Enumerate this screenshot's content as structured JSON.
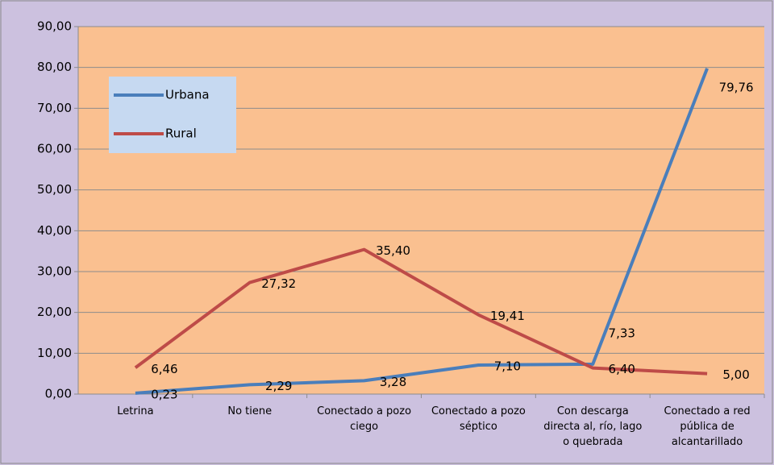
{
  "chart_data": {
    "type": "line",
    "categories": [
      "Letrina",
      "No tiene",
      "Conectado a pozo ciego",
      "Conectado a pozo séptico",
      "Con descarga directa al, río, lago o quebrada",
      "Conectado a red pública de alcantarillado"
    ],
    "series": [
      {
        "name": "Urbana",
        "color": "#4a7ebb",
        "values": [
          0.23,
          2.29,
          3.28,
          7.1,
          7.33,
          79.76
        ],
        "value_labels": [
          "0,23",
          "2,29",
          "3,28",
          "7,10",
          "7,33",
          "79,76"
        ]
      },
      {
        "name": "Rural",
        "color": "#be4b48",
        "values": [
          6.46,
          27.32,
          35.4,
          19.41,
          6.4,
          5.0
        ],
        "value_labels": [
          "6,46",
          "27,32",
          "35,40",
          "19,41",
          "6,40",
          "5,00"
        ]
      }
    ],
    "ylim": [
      0,
      90
    ],
    "yticks": [
      {
        "value": 0,
        "label": "0,00"
      },
      {
        "value": 10,
        "label": "10,00"
      },
      {
        "value": 20,
        "label": "20,00"
      },
      {
        "value": 30,
        "label": "30,00"
      },
      {
        "value": 40,
        "label": "40,00"
      },
      {
        "value": 50,
        "label": "50,00"
      },
      {
        "value": 60,
        "label": "60,00"
      },
      {
        "value": 70,
        "label": "70,00"
      },
      {
        "value": 80,
        "label": "80,00"
      },
      {
        "value": 90,
        "label": "90,00"
      }
    ],
    "grid": true,
    "legend": "upper left"
  }
}
